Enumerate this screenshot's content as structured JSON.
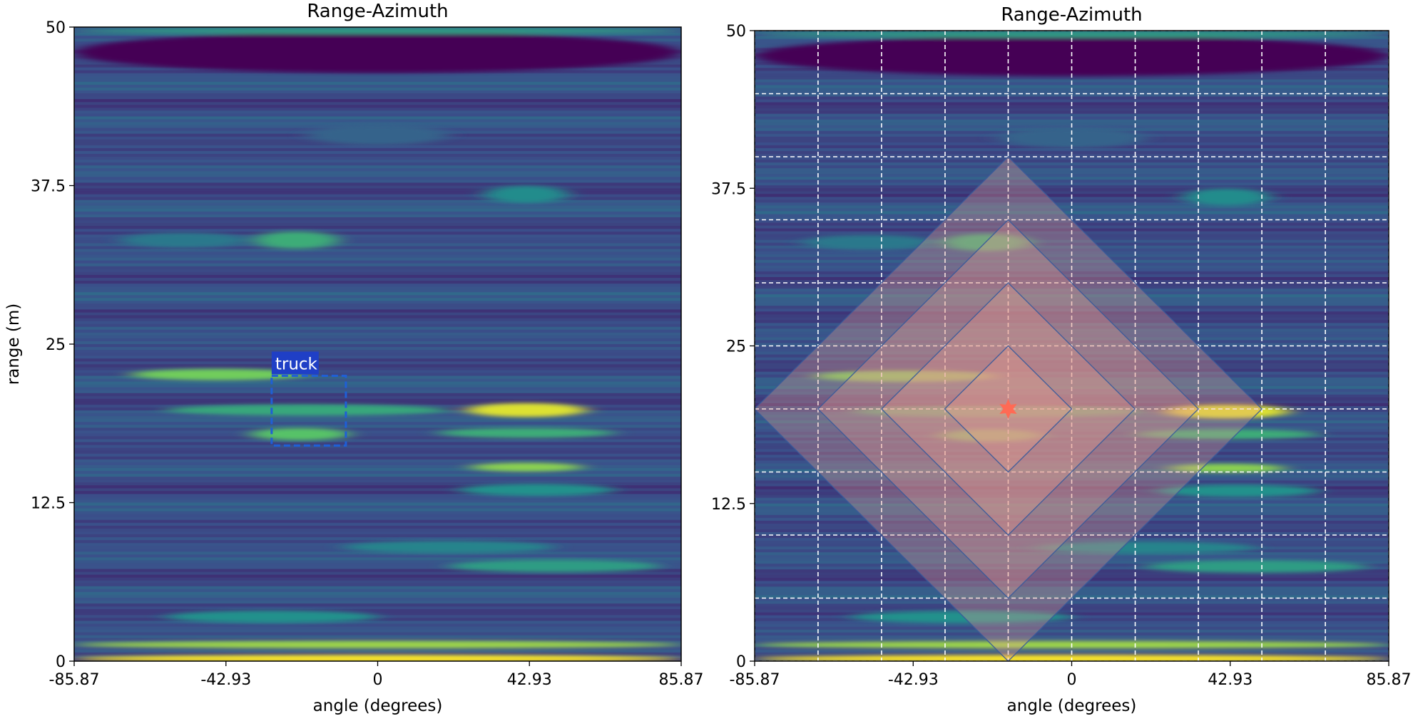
{
  "colors": {
    "viridis_dark": "#440154",
    "viridis_base": "#3b528b",
    "viridis_teal": "#21918c",
    "viridis_green": "#5ec962",
    "viridis_yellow": "#fde725",
    "box_stroke": "#1f5fd6",
    "box_label_bg": "#1f3fc6",
    "overlay_fill": "#e8a090",
    "overlay_stroke": "#3a5a9a",
    "star": "#ff6a55",
    "grid": "#ffffff"
  },
  "chart_data": [
    {
      "type": "heatmap",
      "title": "Range-Azimuth",
      "xlabel": "angle (degrees)",
      "ylabel": "range (m)",
      "xlim": [
        -85.87,
        85.87
      ],
      "ylim": [
        0,
        50
      ],
      "xticks": [
        "-85.87",
        "-42.93",
        "0",
        "42.93",
        "85.87"
      ],
      "yticks": [
        "0",
        "12.5",
        "25",
        "37.5",
        "50"
      ],
      "colormap": "viridis",
      "grid": false,
      "annotations": [
        {
          "label": "truck",
          "x_range": [
            -30,
            -9
          ],
          "y_range": [
            17,
            22.5
          ],
          "style": "dashed box"
        }
      ],
      "features": [
        {
          "x": 0,
          "y": 48,
          "w": 85.87,
          "h": 1.6,
          "level": 0.0
        },
        {
          "x": 0,
          "y": 49.7,
          "w": 85.87,
          "h": 0.25,
          "level": 0.55
        },
        {
          "x": 0,
          "y": 41.5,
          "w": 20,
          "h": 0.8,
          "level": 0.32
        },
        {
          "x": 42,
          "y": 36.8,
          "w": 12,
          "h": 0.7,
          "level": 0.48
        },
        {
          "x": -23,
          "y": 33.2,
          "w": 12,
          "h": 0.7,
          "level": 0.62
        },
        {
          "x": -55,
          "y": 33.2,
          "w": 18,
          "h": 0.6,
          "level": 0.4
        },
        {
          "x": -45,
          "y": 22.6,
          "w": 25,
          "h": 0.45,
          "level": 0.78
        },
        {
          "x": -20,
          "y": 19.8,
          "w": 40,
          "h": 0.45,
          "level": 0.6
        },
        {
          "x": -22,
          "y": 17.9,
          "w": 14,
          "h": 0.5,
          "level": 0.72
        },
        {
          "x": 42,
          "y": 19.8,
          "w": 17,
          "h": 0.55,
          "level": 0.95
        },
        {
          "x": 42,
          "y": 18.0,
          "w": 25,
          "h": 0.4,
          "level": 0.62
        },
        {
          "x": 42,
          "y": 15.3,
          "w": 16,
          "h": 0.35,
          "level": 0.82
        },
        {
          "x": 45,
          "y": 13.5,
          "w": 22,
          "h": 0.5,
          "level": 0.5
        },
        {
          "x": 20,
          "y": 9.0,
          "w": 30,
          "h": 0.5,
          "level": 0.45
        },
        {
          "x": 50,
          "y": 7.5,
          "w": 30,
          "h": 0.5,
          "level": 0.55
        },
        {
          "x": -30,
          "y": 3.5,
          "w": 30,
          "h": 0.5,
          "level": 0.5
        },
        {
          "x": 0,
          "y": 1.3,
          "w": 85.87,
          "h": 0.3,
          "level": 0.85
        },
        {
          "x": 0,
          "y": 0.2,
          "w": 85.87,
          "h": 0.3,
          "level": 1.0
        }
      ]
    },
    {
      "type": "heatmap",
      "title": "Range-Azimuth",
      "xlabel": "angle (degrees)",
      "ylabel": "",
      "xlim": [
        -85.87,
        85.87
      ],
      "ylim": [
        0,
        50
      ],
      "xticks": [
        "-85.87",
        "-42.93",
        "0",
        "42.93",
        "85.87"
      ],
      "yticks": [
        "0",
        "12.5",
        "25",
        "37.5",
        "50"
      ],
      "colormap": "viridis",
      "grid": true,
      "grid_style": "dashed white",
      "grid_x": [
        -85.87,
        -68.7,
        -51.5,
        -34.3,
        -17.2,
        0,
        17.2,
        34.3,
        51.5,
        68.7,
        85.87
      ],
      "grid_y": [
        0,
        5,
        10,
        15,
        20,
        25,
        30,
        35,
        40,
        45,
        50
      ],
      "marker": {
        "shape": "star",
        "x": -17.2,
        "y": 20
      },
      "diamonds": [
        {
          "cx": -17.2,
          "cy": 20,
          "half_width": 68.7,
          "half_height": 20
        },
        {
          "cx": -17.2,
          "cy": 20,
          "half_width": 51.5,
          "half_height": 15
        },
        {
          "cx": -17.2,
          "cy": 20,
          "half_width": 34.3,
          "half_height": 10
        },
        {
          "cx": -17.2,
          "cy": 20,
          "half_width": 17.2,
          "half_height": 5
        }
      ]
    }
  ]
}
